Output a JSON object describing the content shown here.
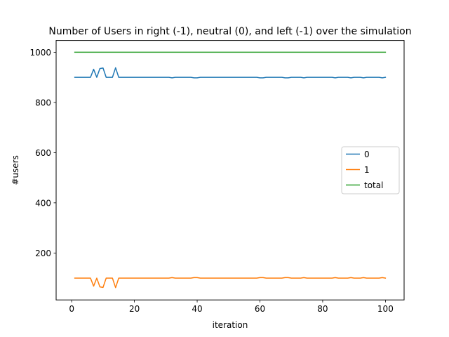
{
  "chart_data": {
    "type": "line",
    "title": "Number of Users in right (-1), neutral (0), and left (-1) over the simulation",
    "xlabel": "iteration",
    "ylabel": "#users",
    "xlim": [
      -4.95,
      105.95
    ],
    "ylim": [
      13,
      1047
    ],
    "xticks": [
      0,
      20,
      40,
      60,
      80,
      100
    ],
    "yticks": [
      200,
      400,
      600,
      800,
      1000
    ],
    "grid": false,
    "legend_position": "center-right",
    "x": [
      1,
      2,
      3,
      4,
      5,
      6,
      7,
      8,
      9,
      10,
      11,
      12,
      13,
      14,
      15,
      16,
      17,
      18,
      19,
      20,
      21,
      22,
      23,
      24,
      25,
      26,
      27,
      28,
      29,
      30,
      31,
      32,
      33,
      34,
      35,
      36,
      37,
      38,
      39,
      40,
      41,
      42,
      43,
      44,
      45,
      46,
      47,
      48,
      49,
      50,
      51,
      52,
      53,
      54,
      55,
      56,
      57,
      58,
      59,
      60,
      61,
      62,
      63,
      64,
      65,
      66,
      67,
      68,
      69,
      70,
      71,
      72,
      73,
      74,
      75,
      76,
      77,
      78,
      79,
      80,
      81,
      82,
      83,
      84,
      85,
      86,
      87,
      88,
      89,
      90,
      91,
      92,
      93,
      94,
      95,
      96,
      97,
      98,
      99,
      100
    ],
    "series": [
      {
        "name": "0",
        "color": "#1f77b4",
        "values": [
          900,
          900,
          900,
          900,
          900,
          900,
          932,
          900,
          935,
          937,
          900,
          900,
          900,
          938,
          900,
          900,
          900,
          900,
          900,
          900,
          900,
          900,
          900,
          900,
          900,
          900,
          900,
          900,
          900,
          900,
          900,
          898,
          900,
          900,
          900,
          900,
          900,
          900,
          898,
          898,
          900,
          900,
          900,
          900,
          900,
          900,
          900,
          900,
          900,
          900,
          900,
          900,
          900,
          900,
          900,
          900,
          900,
          900,
          900,
          898,
          898,
          900,
          900,
          900,
          900,
          900,
          900,
          898,
          898,
          900,
          900,
          900,
          900,
          898,
          900,
          900,
          900,
          900,
          900,
          900,
          900,
          900,
          900,
          898,
          900,
          900,
          900,
          900,
          898,
          900,
          900,
          900,
          898,
          900,
          900,
          900,
          900,
          900,
          898,
          900
        ]
      },
      {
        "name": "1",
        "color": "#ff7f0e",
        "values": [
          100,
          100,
          100,
          100,
          100,
          100,
          68,
          100,
          65,
          63,
          100,
          100,
          100,
          62,
          100,
          100,
          100,
          100,
          100,
          100,
          100,
          100,
          100,
          100,
          100,
          100,
          100,
          100,
          100,
          100,
          100,
          102,
          100,
          100,
          100,
          100,
          100,
          100,
          102,
          102,
          100,
          100,
          100,
          100,
          100,
          100,
          100,
          100,
          100,
          100,
          100,
          100,
          100,
          100,
          100,
          100,
          100,
          100,
          100,
          102,
          102,
          100,
          100,
          100,
          100,
          100,
          100,
          102,
          102,
          100,
          100,
          100,
          100,
          102,
          100,
          100,
          100,
          100,
          100,
          100,
          100,
          100,
          100,
          102,
          100,
          100,
          100,
          100,
          102,
          100,
          100,
          100,
          102,
          100,
          100,
          100,
          100,
          100,
          102,
          100
        ]
      },
      {
        "name": "total",
        "color": "#2ca02c",
        "values": [
          1000,
          1000,
          1000,
          1000,
          1000,
          1000,
          1000,
          1000,
          1000,
          1000,
          1000,
          1000,
          1000,
          1000,
          1000,
          1000,
          1000,
          1000,
          1000,
          1000,
          1000,
          1000,
          1000,
          1000,
          1000,
          1000,
          1000,
          1000,
          1000,
          1000,
          1000,
          1000,
          1000,
          1000,
          1000,
          1000,
          1000,
          1000,
          1000,
          1000,
          1000,
          1000,
          1000,
          1000,
          1000,
          1000,
          1000,
          1000,
          1000,
          1000,
          1000,
          1000,
          1000,
          1000,
          1000,
          1000,
          1000,
          1000,
          1000,
          1000,
          1000,
          1000,
          1000,
          1000,
          1000,
          1000,
          1000,
          1000,
          1000,
          1000,
          1000,
          1000,
          1000,
          1000,
          1000,
          1000,
          1000,
          1000,
          1000,
          1000,
          1000,
          1000,
          1000,
          1000,
          1000,
          1000,
          1000,
          1000,
          1000,
          1000,
          1000,
          1000,
          1000,
          1000,
          1000,
          1000,
          1000,
          1000,
          1000,
          1000
        ]
      }
    ]
  }
}
